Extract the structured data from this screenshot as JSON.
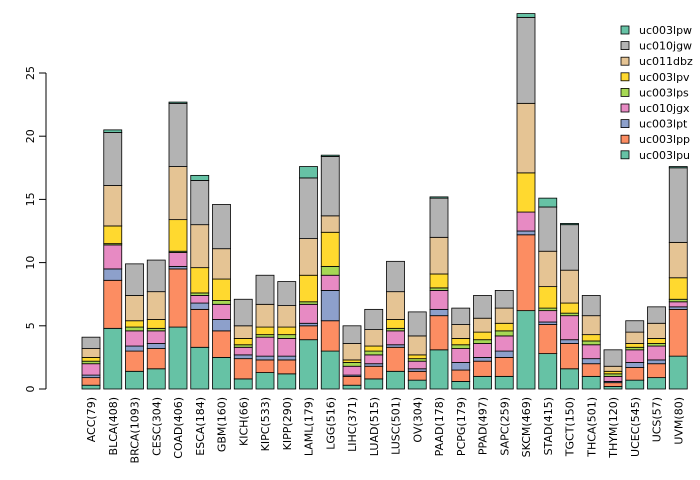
{
  "chart_data": {
    "type": "bar",
    "stacked": true,
    "title": "",
    "xlabel": "",
    "ylabel": "",
    "ylim": [
      0,
      30
    ],
    "yticks": [
      0,
      5,
      10,
      15,
      20,
      25
    ],
    "legend_position": "top-right",
    "categories": [
      "ACC(79)",
      "BLCA(408)",
      "BRCA(1093)",
      "CESC(304)",
      "COAD(406)",
      "ESCA(184)",
      "GBM(160)",
      "KICH(66)",
      "KIPC(533)",
      "KIPP(290)",
      "LAML(179)",
      "LGG(516)",
      "LIHC(371)",
      "LUAD(515)",
      "LUSC(501)",
      "OV(304)",
      "PAAD(178)",
      "PCPG(179)",
      "PPAD(497)",
      "SAPC(259)",
      "SKCM(469)",
      "STAD(415)",
      "TGCT(150)",
      "THCA(501)",
      "THYM(120)",
      "UCEC(545)",
      "UCS(57)",
      "UVM(80)"
    ],
    "series": [
      {
        "name": "uc003lpu",
        "color": "#66c2a5",
        "values": [
          0.3,
          4.8,
          1.4,
          1.6,
          4.9,
          3.3,
          2.5,
          0.8,
          1.3,
          1.2,
          3.9,
          3.0,
          0.3,
          0.8,
          1.4,
          0.7,
          3.1,
          0.6,
          1.0,
          1.0,
          6.2,
          2.8,
          1.6,
          1.0,
          0.2,
          0.7,
          0.9,
          2.6
        ]
      },
      {
        "name": "uc003lpp",
        "color": "#fc8d62",
        "values": [
          0.6,
          3.8,
          1.6,
          1.6,
          4.6,
          3.0,
          2.1,
          1.6,
          1.0,
          1.1,
          1.1,
          2.4,
          0.7,
          1.0,
          1.9,
          0.7,
          2.7,
          0.9,
          1.2,
          1.5,
          6.0,
          2.3,
          2.0,
          1.0,
          0.3,
          1.0,
          1.1,
          3.7
        ]
      },
      {
        "name": "uc003lpt",
        "color": "#8da0cb",
        "values": [
          0.2,
          0.9,
          0.4,
          0.4,
          0.2,
          0.5,
          0.9,
          0.3,
          0.3,
          0.3,
          0.2,
          2.4,
          0.1,
          0.2,
          0.2,
          0.2,
          0.5,
          0.6,
          0.3,
          0.5,
          0.3,
          0.2,
          0.3,
          0.4,
          0.1,
          0.4,
          0.3,
          0.2
        ]
      },
      {
        "name": "uc010jgx",
        "color": "#e78ac3",
        "values": [
          0.9,
          1.9,
          1.2,
          1.0,
          1.1,
          0.6,
          1.2,
          0.6,
          1.5,
          1.4,
          1.5,
          1.2,
          0.7,
          0.7,
          1.1,
          0.6,
          1.5,
          1.1,
          1.1,
          1.2,
          1.5,
          0.9,
          1.9,
          1.1,
          0.4,
          1.0,
          1.1,
          0.4
        ]
      },
      {
        "name": "uc003lps",
        "color": "#a6d854",
        "values": [
          0.2,
          0.1,
          0.3,
          0.2,
          0.1,
          0.2,
          0.3,
          0.2,
          0.2,
          0.3,
          0.2,
          0.7,
          0.3,
          0.3,
          0.2,
          0.2,
          0.2,
          0.3,
          0.3,
          0.4,
          0.0,
          0.2,
          0.2,
          0.3,
          0.2,
          0.2,
          0.2,
          0.2
        ]
      },
      {
        "name": "uc003lpv",
        "color": "#ffd92f",
        "values": [
          0.3,
          1.4,
          0.5,
          0.7,
          2.5,
          2.0,
          1.7,
          0.5,
          0.6,
          0.6,
          2.1,
          2.7,
          0.2,
          0.4,
          0.7,
          0.3,
          1.1,
          0.5,
          0.6,
          0.6,
          3.1,
          1.7,
          0.8,
          0.5,
          0.2,
          0.3,
          0.4,
          1.7
        ]
      },
      {
        "name": "uc011dbz",
        "color": "#e5c494",
        "values": [
          0.7,
          3.2,
          2.0,
          2.2,
          4.2,
          3.4,
          2.4,
          1.0,
          1.8,
          1.7,
          2.9,
          1.3,
          1.3,
          1.3,
          2.2,
          1.5,
          2.9,
          1.1,
          1.1,
          1.2,
          5.5,
          2.8,
          2.6,
          1.5,
          0.4,
          0.9,
          1.2,
          2.8
        ]
      },
      {
        "name": "uc010jgw",
        "color": "#b3b3b3",
        "values": [
          0.9,
          4.2,
          2.5,
          2.5,
          5.0,
          3.5,
          3.5,
          2.1,
          2.3,
          1.9,
          4.8,
          4.7,
          1.4,
          1.6,
          2.4,
          1.9,
          3.1,
          1.3,
          1.8,
          1.4,
          6.8,
          3.5,
          3.6,
          1.6,
          1.3,
          0.9,
          1.3,
          5.9
        ]
      },
      {
        "name": "uc003lpw",
        "color": "#66c2a5",
        "values": [
          0.0,
          0.2,
          0.0,
          0.0,
          0.1,
          0.4,
          0.0,
          0.0,
          0.0,
          0.0,
          0.9,
          0.1,
          0.0,
          0.0,
          0.0,
          0.0,
          0.1,
          0.0,
          0.0,
          0.0,
          0.3,
          0.7,
          0.1,
          0.0,
          0.0,
          0.0,
          0.0,
          0.1
        ]
      }
    ]
  }
}
